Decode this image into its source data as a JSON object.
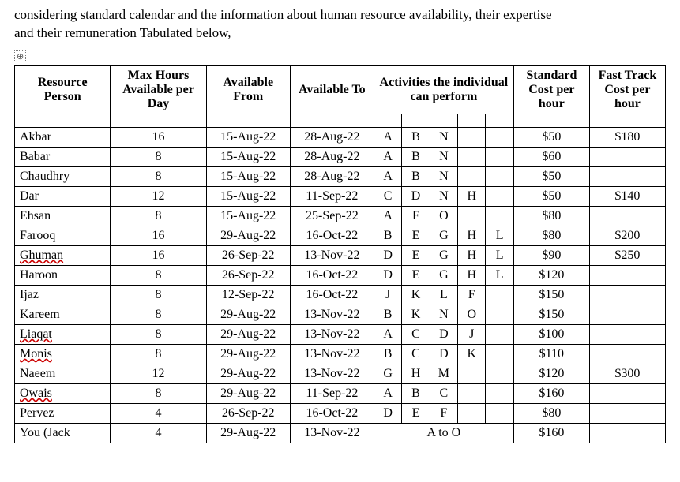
{
  "intro": {
    "line1": "considering standard calendar and the information about human resource availability, their expertise",
    "line2": "and their remuneration Tabulated below,"
  },
  "anchor_glyph": "⊕",
  "headers": {
    "person": "Resource Person",
    "maxhrs": "Max Hours Available per Day",
    "from": "Available From",
    "to": "Available To",
    "activities": "Activities the individual can perform",
    "std": "Standard Cost per hour",
    "fast": "Fast Track Cost per hour"
  },
  "rows": [
    {
      "name": "Akbar",
      "wavy": false,
      "max": "16",
      "from": "15-Aug-22",
      "to": "28-Aug-22",
      "acts": [
        "A",
        "B",
        "N",
        "",
        ""
      ],
      "acts_span": null,
      "std": "$50",
      "fast": "$180"
    },
    {
      "name": "Babar",
      "wavy": false,
      "max": "8",
      "from": "15-Aug-22",
      "to": "28-Aug-22",
      "acts": [
        "A",
        "B",
        "N",
        "",
        ""
      ],
      "acts_span": null,
      "std": "$60",
      "fast": ""
    },
    {
      "name": "Chaudhry",
      "wavy": false,
      "max": "8",
      "from": "15-Aug-22",
      "to": "28-Aug-22",
      "acts": [
        "A",
        "B",
        "N",
        "",
        ""
      ],
      "acts_span": null,
      "std": "$50",
      "fast": ""
    },
    {
      "name": "Dar",
      "wavy": false,
      "max": "12",
      "from": "15-Aug-22",
      "to": "11-Sep-22",
      "acts": [
        "C",
        "D",
        "N",
        "H",
        ""
      ],
      "acts_span": null,
      "std": "$50",
      "fast": "$140"
    },
    {
      "name": "Ehsan",
      "wavy": false,
      "max": "8",
      "from": "15-Aug-22",
      "to": "25-Sep-22",
      "acts": [
        "A",
        "F",
        "O",
        "",
        ""
      ],
      "acts_span": null,
      "std": "$80",
      "fast": ""
    },
    {
      "name": "Farooq",
      "wavy": false,
      "max": "16",
      "from": "29-Aug-22",
      "to": "16-Oct-22",
      "acts": [
        "B",
        "E",
        "G",
        "H",
        "L"
      ],
      "acts_span": null,
      "std": "$80",
      "fast": "$200"
    },
    {
      "name": "Ghuman",
      "wavy": true,
      "max": "16",
      "from": "26-Sep-22",
      "to": "13-Nov-22",
      "acts": [
        "D",
        "E",
        "G",
        "H",
        "L"
      ],
      "acts_span": null,
      "std": "$90",
      "fast": "$250"
    },
    {
      "name": "Haroon",
      "wavy": false,
      "max": "8",
      "from": "26-Sep-22",
      "to": "16-Oct-22",
      "acts": [
        "D",
        "E",
        "G",
        "H",
        "L"
      ],
      "acts_span": null,
      "std": "$120",
      "fast": ""
    },
    {
      "name": "Ijaz",
      "wavy": false,
      "max": "8",
      "from": "12-Sep-22",
      "to": "16-Oct-22",
      "acts": [
        "J",
        "K",
        "L",
        "F",
        ""
      ],
      "acts_span": null,
      "std": "$150",
      "fast": ""
    },
    {
      "name": "Kareem",
      "wavy": false,
      "max": "8",
      "from": "29-Aug-22",
      "to": "13-Nov-22",
      "acts": [
        "B",
        "K",
        "N",
        "O",
        ""
      ],
      "acts_span": null,
      "std": "$150",
      "fast": ""
    },
    {
      "name": "Liaqat",
      "wavy": true,
      "max": "8",
      "from": "29-Aug-22",
      "to": "13-Nov-22",
      "acts": [
        "A",
        "C",
        "D",
        "J",
        ""
      ],
      "acts_span": null,
      "std": "$100",
      "fast": ""
    },
    {
      "name": "Monis",
      "wavy": true,
      "max": "8",
      "from": "29-Aug-22",
      "to": "13-Nov-22",
      "acts": [
        "B",
        "C",
        "D",
        "K",
        ""
      ],
      "acts_span": null,
      "std": "$110",
      "fast": ""
    },
    {
      "name": "Naeem",
      "wavy": false,
      "max": "12",
      "from": "29-Aug-22",
      "to": "13-Nov-22",
      "acts": [
        "G",
        "H",
        "M",
        "",
        ""
      ],
      "acts_span": null,
      "std": "$120",
      "fast": "$300"
    },
    {
      "name": "Owais",
      "wavy": true,
      "max": "8",
      "from": "29-Aug-22",
      "to": "11-Sep-22",
      "acts": [
        "A",
        "B",
        "C",
        "",
        ""
      ],
      "acts_span": null,
      "std": "$160",
      "fast": ""
    },
    {
      "name": "Pervez",
      "wavy": false,
      "max": "4",
      "from": "26-Sep-22",
      "to": "16-Oct-22",
      "acts": [
        "D",
        "E",
        "F",
        "",
        ""
      ],
      "acts_span": null,
      "std": "$80",
      "fast": ""
    },
    {
      "name": "You (Jack",
      "wavy": false,
      "max": "4",
      "from": "29-Aug-22",
      "to": "13-Nov-22",
      "acts": null,
      "acts_span": "A to O",
      "std": "$160",
      "fast": ""
    }
  ]
}
